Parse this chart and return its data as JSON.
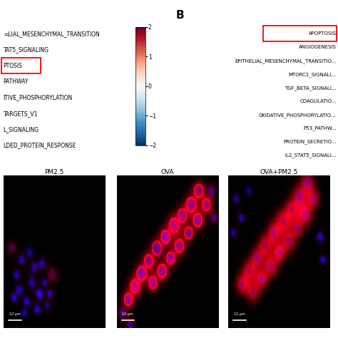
{
  "panel_B_label": "B",
  "labels_A": [
    "=LIAL_MESENCHYMAL_TRANSITION",
    "TAT5_SIGNALING",
    "PTOSIS",
    "PATHWAY",
    "ITIVE_PHOSPHORYLATION",
    "TARGETS_V1",
    "L_SIGNALING",
    "LDED_PROTEIN_RESPONSE"
  ],
  "colorbar_ticks": [
    -2,
    -1,
    0,
    1,
    2
  ],
  "colormap": "RdBu_r",
  "vmin": -2,
  "vmax": 2,
  "labels_B": [
    "APOPTOSIS",
    "ANGIOGENESIS",
    "EPITHELIAL_MESENCHYMAL_TRANSITIO...",
    "MTORC1_SIGNALI...",
    "TGF_BETA_SIGNALI...",
    "COAGULATIO...",
    "OXIDATIVE_PHOSPHORYLATIO...",
    "P53_PATHW...",
    "PROTEIN_SECRETIO...",
    "IL2_STAT5_SIGNALI..."
  ],
  "microscopy_labels": [
    "PM2.5",
    "OVA",
    "OVA+PM2.5"
  ],
  "background_color": "#ffffff",
  "text_color": "#000000"
}
